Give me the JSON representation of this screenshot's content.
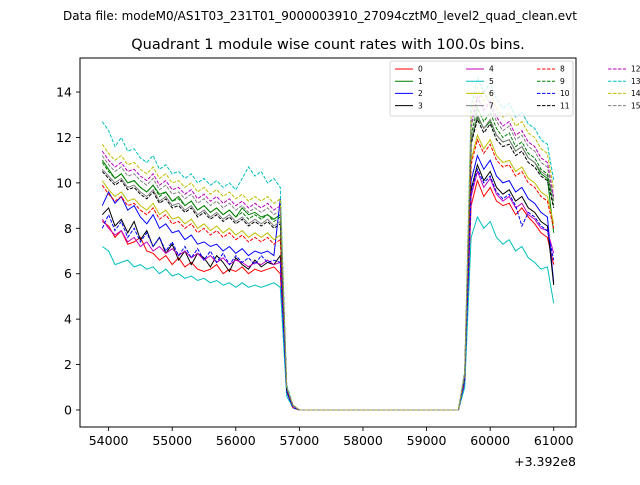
{
  "header_text": "Data file: modeM0/AS1T03_231T01_9000003910_27094cztM0_level2_quad_clean.evt",
  "chart_data": {
    "type": "line",
    "title": "Quadrant 1 module wise count rates with 100.0s bins.",
    "xlabel": "",
    "ylabel": "",
    "x_offset_label": "+3.392e8",
    "xlim": [
      53550,
      61350
    ],
    "ylim": [
      -0.75,
      15.5
    ],
    "x_ticks": [
      54000,
      55000,
      56000,
      57000,
      58000,
      59000,
      60000,
      61000
    ],
    "x_tick_labels": [
      "54000",
      "55000",
      "56000",
      "57000",
      "58000",
      "59000",
      "60000",
      "61000"
    ],
    "y_ticks": [
      0,
      2,
      4,
      6,
      8,
      10,
      12,
      14
    ],
    "y_tick_labels": [
      "0",
      "2",
      "4",
      "6",
      "8",
      "10",
      "12",
      "14"
    ],
    "grid": false,
    "legend_position": "top-right",
    "x_segments": {
      "seg1": {
        "start": 53900,
        "step": 100,
        "count": 29
      },
      "gap_ramp": [
        56800,
        56900,
        57000
      ],
      "seg2": {
        "start": 59600,
        "step": 100,
        "count": 15
      }
    },
    "series": [
      {
        "name": "0",
        "color": "#ff0000",
        "dash": "solid",
        "seg1": [
          8.3,
          8.1,
          7.6,
          7.9,
          7.3,
          7.4,
          7.6,
          7.0,
          6.9,
          6.6,
          6.8,
          6.4,
          6.7,
          6.3,
          6.5,
          6.2,
          6.1,
          6.2,
          6.4,
          6.0,
          6.2,
          6.1,
          6.3,
          6.0,
          6.2,
          6.1,
          6.2,
          6.3,
          6.0
        ],
        "ramp": [
          0.8,
          0.1,
          0.0
        ],
        "seg2": [
          1.2,
          9.0,
          10.1,
          9.4,
          9.8,
          9.2,
          9.0,
          9.1,
          8.6,
          8.9,
          8.5,
          8.2,
          7.8,
          7.6,
          6.4
        ]
      },
      {
        "name": "1",
        "color": "#008000",
        "dash": "solid",
        "seg1": [
          11.0,
          10.6,
          10.2,
          10.4,
          10.0,
          10.1,
          9.8,
          9.6,
          9.9,
          9.5,
          9.6,
          9.2,
          9.4,
          9.0,
          9.2,
          8.8,
          9.0,
          8.7,
          8.9,
          8.6,
          8.8,
          8.5,
          8.9,
          8.6,
          8.7,
          8.5,
          8.6,
          8.4,
          8.6
        ],
        "ramp": [
          0.9,
          0.2,
          0.0
        ],
        "seg2": [
          1.5,
          11.8,
          12.9,
          12.4,
          12.7,
          12.1,
          11.8,
          11.9,
          11.4,
          11.6,
          11.1,
          10.9,
          10.4,
          10.2,
          7.8
        ]
      },
      {
        "name": "2",
        "color": "#0000ff",
        "dash": "solid",
        "seg1": [
          9.0,
          9.6,
          9.1,
          9.4,
          8.8,
          9.0,
          8.5,
          8.2,
          8.6,
          8.0,
          8.2,
          7.8,
          7.9,
          7.5,
          7.7,
          7.3,
          7.4,
          7.2,
          7.3,
          7.0,
          7.2,
          6.9,
          7.1,
          6.8,
          7.0,
          6.9,
          7.0,
          6.8,
          9.3
        ],
        "ramp": [
          0.8,
          0.1,
          0.0
        ],
        "seg2": [
          1.3,
          10.1,
          11.2,
          10.6,
          11.0,
          10.3,
          10.0,
          10.1,
          9.6,
          9.8,
          9.3,
          9.1,
          8.7,
          8.5,
          5.6
        ]
      },
      {
        "name": "3",
        "color": "#000000",
        "dash": "solid",
        "seg1": [
          8.6,
          8.9,
          8.1,
          8.4,
          7.8,
          8.3,
          7.5,
          7.9,
          7.2,
          7.6,
          6.9,
          7.3,
          6.6,
          7.0,
          6.4,
          6.9,
          6.7,
          6.3,
          6.8,
          6.5,
          6.1,
          6.7,
          6.4,
          6.2,
          6.6,
          6.3,
          6.5,
          6.4,
          6.8
        ],
        "ramp": [
          0.8,
          0.1,
          0.0
        ],
        "seg2": [
          1.2,
          9.7,
          10.8,
          10.1,
          10.5,
          9.8,
          9.5,
          9.7,
          9.2,
          9.4,
          8.9,
          8.7,
          8.3,
          8.1,
          5.5
        ]
      },
      {
        "name": "4",
        "color": "#bf00bf",
        "dash": "solid",
        "seg1": [
          8.4,
          8.0,
          7.7,
          7.9,
          7.4,
          7.6,
          7.2,
          7.4,
          7.0,
          7.2,
          6.9,
          7.1,
          6.8,
          7.0,
          6.7,
          6.9,
          6.6,
          6.8,
          6.5,
          6.7,
          6.4,
          6.6,
          6.5,
          6.3,
          6.5,
          6.4,
          6.6,
          6.4,
          6.5
        ],
        "ramp": [
          0.8,
          0.1,
          0.0
        ],
        "seg2": [
          1.2,
          9.4,
          10.5,
          9.8,
          10.2,
          9.5,
          9.2,
          9.4,
          8.9,
          9.1,
          8.6,
          8.4,
          8.0,
          7.9,
          6.9
        ]
      },
      {
        "name": "5",
        "color": "#00bfbf",
        "dash": "solid",
        "seg1": [
          7.2,
          7.0,
          6.4,
          6.5,
          6.6,
          6.3,
          6.4,
          6.2,
          6.3,
          6.0,
          6.2,
          5.9,
          6.0,
          5.8,
          5.9,
          5.7,
          5.8,
          5.6,
          5.7,
          5.5,
          5.6,
          5.4,
          5.6,
          5.4,
          5.5,
          5.4,
          5.5,
          5.6,
          5.4
        ],
        "ramp": [
          0.6,
          0.1,
          0.0
        ],
        "seg2": [
          1.0,
          7.6,
          8.5,
          8.0,
          8.3,
          7.6,
          7.3,
          7.5,
          7.0,
          7.2,
          6.7,
          6.5,
          6.2,
          6.3,
          4.7
        ]
      },
      {
        "name": "6",
        "color": "#bfbf00",
        "dash": "solid",
        "seg1": [
          10.1,
          9.7,
          9.4,
          9.6,
          9.2,
          9.3,
          9.0,
          8.8,
          9.1,
          8.6,
          8.8,
          8.4,
          8.5,
          8.2,
          8.4,
          8.0,
          8.2,
          7.9,
          8.1,
          7.8,
          8.0,
          7.7,
          7.9,
          7.6,
          7.8,
          7.6,
          7.8,
          7.5,
          7.7
        ],
        "ramp": [
          0.9,
          0.1,
          0.0
        ],
        "seg2": [
          1.4,
          11.0,
          12.1,
          11.5,
          11.9,
          11.2,
          10.9,
          11.0,
          10.5,
          10.7,
          10.2,
          10.0,
          9.6,
          9.4,
          8.2
        ]
      },
      {
        "name": "7",
        "color": "#808080",
        "dash": "solid",
        "seg1": [
          10.6,
          10.3,
          10.0,
          10.2,
          9.8,
          9.9,
          9.6,
          9.4,
          9.7,
          9.2,
          9.4,
          9.0,
          9.1,
          8.8,
          9.0,
          8.6,
          8.8,
          8.5,
          8.7,
          8.4,
          8.6,
          8.3,
          8.5,
          8.2,
          8.4,
          8.2,
          8.4,
          8.1,
          8.3
        ],
        "ramp": [
          0.9,
          0.2,
          0.0
        ],
        "seg2": [
          1.5,
          11.9,
          13.0,
          12.4,
          12.8,
          12.1,
          11.8,
          11.9,
          11.4,
          11.6,
          11.1,
          10.9,
          10.5,
          10.3,
          9.3
        ]
      },
      {
        "name": "8",
        "color": "#ff0000",
        "dash": "dashed",
        "seg1": [
          9.9,
          9.5,
          9.2,
          9.4,
          9.0,
          9.1,
          8.8,
          8.6,
          8.9,
          8.4,
          8.6,
          8.2,
          8.3,
          8.0,
          8.2,
          7.8,
          8.0,
          7.7,
          7.9,
          7.6,
          7.8,
          7.5,
          7.7,
          7.4,
          7.6,
          7.4,
          7.6,
          7.3,
          7.5
        ],
        "ramp": [
          0.9,
          0.1,
          0.0
        ],
        "seg2": [
          1.4,
          10.8,
          11.9,
          11.3,
          11.7,
          11.0,
          10.7,
          10.8,
          10.3,
          10.5,
          10.0,
          9.8,
          9.4,
          9.2,
          8.0
        ]
      },
      {
        "name": "9",
        "color": "#008000",
        "dash": "dashed",
        "seg1": [
          10.9,
          10.5,
          10.2,
          10.4,
          10.0,
          10.1,
          9.8,
          9.6,
          9.9,
          9.4,
          9.6,
          9.2,
          9.3,
          9.0,
          9.2,
          8.8,
          9.0,
          8.7,
          8.9,
          8.6,
          8.8,
          8.5,
          8.7,
          8.4,
          8.6,
          8.4,
          8.6,
          8.3,
          8.5
        ],
        "ramp": [
          0.9,
          0.2,
          0.0
        ],
        "seg2": [
          1.5,
          12.1,
          13.3,
          12.7,
          13.1,
          12.4,
          12.0,
          12.2,
          11.6,
          11.8,
          11.3,
          11.1,
          10.6,
          10.4,
          9.0
        ]
      },
      {
        "name": "10",
        "color": "#0000ff",
        "dash": "dashed",
        "seg1": [
          8.0,
          8.6,
          7.9,
          8.3,
          7.6,
          8.0,
          7.4,
          7.8,
          7.2,
          7.6,
          7.0,
          7.4,
          6.8,
          7.2,
          6.7,
          7.1,
          6.6,
          7.0,
          6.5,
          6.9,
          6.4,
          6.8,
          6.5,
          6.7,
          6.4,
          6.8,
          6.5,
          6.6,
          6.5
        ],
        "ramp": [
          0.8,
          0.1,
          0.0
        ],
        "seg2": [
          1.3,
          9.6,
          10.6,
          10.0,
          10.3,
          9.6,
          9.3,
          9.5,
          9.0,
          8.1,
          8.7,
          8.5,
          8.1,
          7.9,
          6.6
        ]
      },
      {
        "name": "11",
        "color": "#000000",
        "dash": "dashed",
        "seg1": [
          10.5,
          10.2,
          9.9,
          10.1,
          9.7,
          9.8,
          9.5,
          9.3,
          9.6,
          9.1,
          9.3,
          8.9,
          9.0,
          8.7,
          8.9,
          8.5,
          8.7,
          8.4,
          8.6,
          8.3,
          8.5,
          8.2,
          8.4,
          8.1,
          8.3,
          8.1,
          8.3,
          8.0,
          8.2
        ],
        "ramp": [
          0.9,
          0.2,
          0.0
        ],
        "seg2": [
          1.5,
          11.7,
          12.8,
          12.2,
          12.6,
          11.9,
          11.6,
          11.7,
          11.2,
          11.4,
          10.9,
          10.7,
          10.3,
          10.1,
          8.9
        ]
      },
      {
        "name": "12",
        "color": "#bf00bf",
        "dash": "dashed",
        "seg1": [
          11.4,
          11.0,
          10.7,
          10.9,
          10.5,
          10.6,
          10.3,
          10.1,
          10.4,
          9.9,
          10.1,
          9.7,
          9.8,
          9.5,
          9.7,
          9.3,
          9.5,
          9.2,
          9.4,
          9.1,
          9.3,
          9.0,
          9.2,
          8.9,
          9.1,
          8.9,
          9.1,
          8.8,
          9.0
        ],
        "ramp": [
          1.0,
          0.2,
          0.0
        ],
        "seg2": [
          1.6,
          12.6,
          13.8,
          13.2,
          13.6,
          12.9,
          12.5,
          12.7,
          12.1,
          12.3,
          11.8,
          11.6,
          11.1,
          10.9,
          9.4
        ]
      },
      {
        "name": "13",
        "color": "#00bfbf",
        "dash": "dashed",
        "seg1": [
          12.7,
          12.3,
          11.6,
          12.0,
          11.4,
          11.5,
          11.1,
          10.9,
          11.2,
          10.6,
          10.8,
          10.4,
          10.5,
          10.2,
          10.4,
          10.0,
          10.2,
          9.9,
          10.1,
          9.8,
          10.0,
          9.7,
          10.2,
          10.7,
          10.3,
          10.5,
          10.0,
          10.2,
          9.8
        ],
        "ramp": [
          1.1,
          0.2,
          0.0
        ],
        "seg2": [
          1.7,
          13.4,
          14.6,
          14.0,
          14.4,
          13.7,
          13.3,
          13.5,
          12.9,
          13.1,
          12.6,
          12.4,
          11.9,
          11.7,
          10.1
        ]
      },
      {
        "name": "14",
        "color": "#bfbf00",
        "dash": "dashed",
        "seg1": [
          11.7,
          11.3,
          11.0,
          11.2,
          10.8,
          10.9,
          10.6,
          10.4,
          10.7,
          10.2,
          10.4,
          10.0,
          10.1,
          9.8,
          10.0,
          9.6,
          9.8,
          9.5,
          9.7,
          9.4,
          9.6,
          9.3,
          9.5,
          9.2,
          9.4,
          9.2,
          9.4,
          9.1,
          9.3
        ],
        "ramp": [
          1.0,
          0.2,
          0.0
        ],
        "seg2": [
          1.6,
          13.0,
          14.2,
          13.6,
          14.0,
          13.3,
          12.9,
          13.1,
          12.5,
          12.7,
          12.2,
          12.0,
          11.5,
          11.3,
          9.7
        ]
      },
      {
        "name": "15",
        "color": "#808080",
        "dash": "dashed",
        "seg1": [
          11.2,
          10.8,
          10.5,
          10.7,
          10.3,
          10.4,
          10.1,
          9.9,
          10.2,
          9.7,
          9.9,
          9.5,
          9.6,
          9.3,
          9.5,
          9.1,
          9.3,
          9.0,
          9.2,
          8.9,
          9.1,
          8.8,
          9.0,
          8.7,
          8.9,
          8.7,
          8.9,
          8.6,
          8.8
        ],
        "ramp": [
          1.0,
          0.2,
          0.0
        ],
        "seg2": [
          1.6,
          12.4,
          13.6,
          14.1,
          13.4,
          12.7,
          12.3,
          12.5,
          11.9,
          12.1,
          11.6,
          11.4,
          10.9,
          10.7,
          9.2
        ]
      }
    ]
  }
}
